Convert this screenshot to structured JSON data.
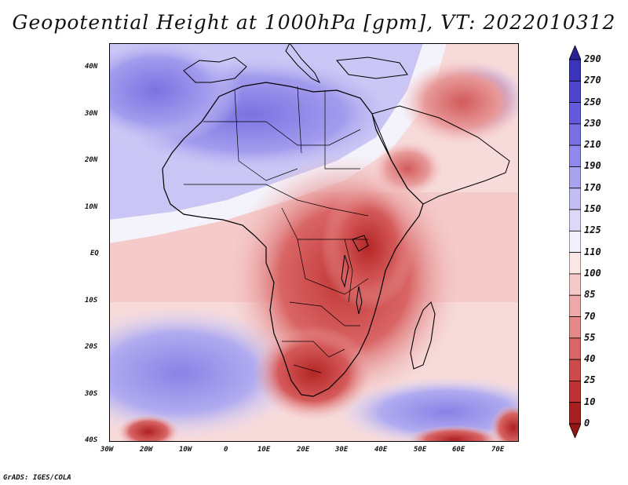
{
  "title": "Geopotential Height at 1000hPa [gpm], VT: 2022010312",
  "credit": "GrADS: IGES/COLA",
  "map": {
    "lat_labels": [
      "40N",
      "30N",
      "20N",
      "10N",
      "EQ",
      "10S",
      "20S",
      "30S",
      "40S"
    ],
    "lon_labels": [
      "30W",
      "20W",
      "10W",
      "0",
      "10E",
      "20E",
      "30E",
      "40E",
      "50E",
      "60E",
      "70E"
    ],
    "lon_range": [
      -30,
      75
    ],
    "lat_range": [
      -40,
      45
    ]
  },
  "colorbar": {
    "levels": [
      "290",
      "270",
      "250",
      "230",
      "210",
      "190",
      "170",
      "150",
      "125",
      "110",
      "100",
      "85",
      "70",
      "55",
      "40",
      "25",
      "10",
      "0"
    ],
    "colors": [
      "#2a1f9a",
      "#3a33bb",
      "#4e45cf",
      "#6559dc",
      "#7a70e4",
      "#9088ea",
      "#a8a2ef",
      "#c2bef4",
      "#dcdaf8",
      "#f2f2fc",
      "#fbe6e6",
      "#f6c9c9",
      "#eeaaaa",
      "#e48888",
      "#d96767",
      "#cc4a4a",
      "#bd3232",
      "#a81f1f",
      "#961515"
    ]
  }
}
